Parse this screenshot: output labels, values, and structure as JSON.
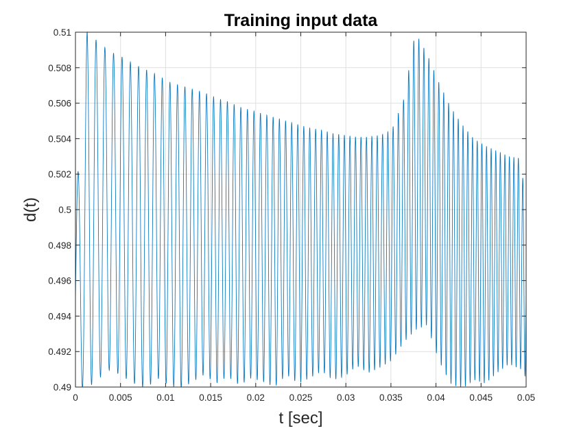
{
  "chart_data": {
    "type": "line",
    "title": "Training input data",
    "xlabel": "t [sec]",
    "ylabel": "d(t)",
    "xlim": [
      0,
      0.05
    ],
    "ylim": [
      0.49,
      0.51
    ],
    "xticks": [
      "0",
      "0.005",
      "0.01",
      "0.015",
      "0.02",
      "0.025",
      "0.03",
      "0.035",
      "0.04",
      "0.045",
      "0.05"
    ],
    "yticks": [
      "0.49",
      "0.492",
      "0.494",
      "0.496",
      "0.498",
      "0.5",
      "0.502",
      "0.504",
      "0.506",
      "0.508",
      "0.51"
    ],
    "grid": true,
    "line_color": "#0072BD",
    "series": [
      {
        "x": [
          0,
          0.0013,
          0.0026,
          0.0039,
          0.0052,
          0.0065,
          0.0078,
          0.0091,
          0.0104,
          0.0117,
          0.013,
          0.0143,
          0.0156,
          0.0169,
          0.0182,
          0.0195,
          0.0208,
          0.0221,
          0.0234,
          0.0247,
          0.026,
          0.0273,
          0.0286,
          0.0299,
          0.0312,
          0.0325,
          0.0338,
          0.0351,
          0.0364,
          0.0377,
          0.039,
          0.0403,
          0.0416,
          0.0429,
          0.0442,
          0.0455,
          0.0468,
          0.0481,
          0.0494,
          0.05
        ],
        "y": [
          0.5,
          0.5101,
          0.5094,
          0.5089,
          0.5086,
          0.5082,
          0.5079,
          0.5076,
          0.5072,
          0.507,
          0.5068,
          0.5066,
          0.5063,
          0.5061,
          0.5058,
          0.5056,
          0.5054,
          0.5052,
          0.505,
          0.5048,
          0.5046,
          0.5045,
          0.5043,
          0.5042,
          0.5041,
          0.5041,
          0.5042,
          0.5045,
          0.5062,
          0.51,
          0.5088,
          0.5072,
          0.5058,
          0.5048,
          0.504,
          0.5036,
          0.5033,
          0.503,
          0.5029,
          0.5
        ]
      },
      {
        "x": [
          0,
          0.0013,
          0.0026,
          0.0039,
          0.0052,
          0.0065,
          0.0078,
          0.0091,
          0.0104,
          0.0117,
          0.013,
          0.0143,
          0.0156,
          0.0169,
          0.0182,
          0.0195,
          0.0208,
          0.0221,
          0.0234,
          0.0247,
          0.026,
          0.0273,
          0.0286,
          0.0299,
          0.0312,
          0.0325,
          0.0338,
          0.0351,
          0.0364,
          0.0377,
          0.039,
          0.0403,
          0.0416,
          0.0429,
          0.0442,
          0.0455,
          0.0468,
          0.0481,
          0.0494,
          0.05
        ],
        "y": [
          0.49,
          0.4899,
          0.4905,
          0.491,
          0.4906,
          0.4902,
          0.4899,
          0.4905,
          0.4901,
          0.4899,
          0.4903,
          0.4907,
          0.4902,
          0.4906,
          0.4901,
          0.4905,
          0.4903,
          0.49,
          0.4907,
          0.4902,
          0.4905,
          0.4909,
          0.4904,
          0.4906,
          0.4912,
          0.4908,
          0.4911,
          0.4915,
          0.4925,
          0.4932,
          0.4935,
          0.4915,
          0.4902,
          0.4899,
          0.4904,
          0.4902,
          0.4908,
          0.4913,
          0.491,
          0.4905
        ]
      }
    ]
  }
}
